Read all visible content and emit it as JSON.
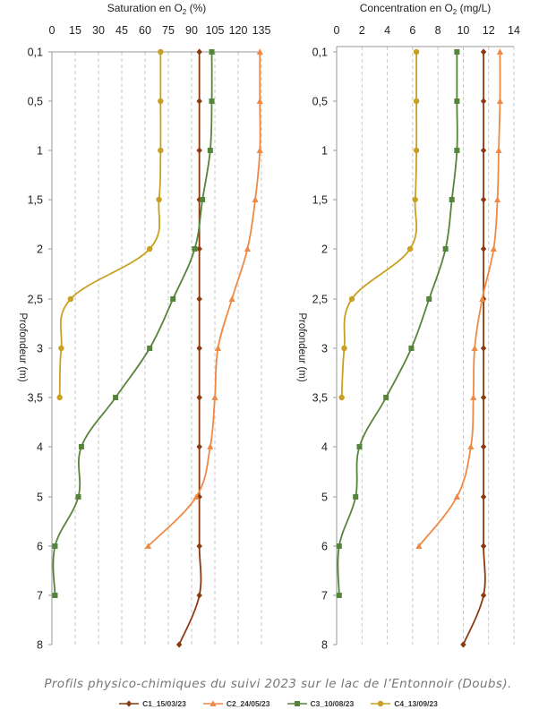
{
  "caption": "Profils physico-chimiques du suivi 2023 sur le lac de l’Entonnoir (Doubs).",
  "colors": {
    "C1": "#8B3A0F",
    "C2": "#EE8A45",
    "C3": "#55853A",
    "C4": "#C9A021"
  },
  "legend": [
    {
      "key": "C1",
      "label": "C1_15/03/23",
      "marker": "diamond"
    },
    {
      "key": "C2",
      "label": "C2_24/05/23",
      "marker": "triangle"
    },
    {
      "key": "C3",
      "label": "C3_10/08/23",
      "marker": "square"
    },
    {
      "key": "C4",
      "label": "C4_13/09/23",
      "marker": "circle"
    }
  ],
  "chart_data": [
    {
      "type": "line",
      "title_parts": [
        "Saturation en O",
        "2",
        " (%)"
      ],
      "ylabel": "Profondeur (m)",
      "xlim": [
        0,
        135
      ],
      "x_ticks": [
        "0",
        "15",
        "30",
        "45",
        "60",
        "75",
        "90",
        "105",
        "120",
        "135"
      ],
      "y_ticks": [
        "0,1",
        "0,5",
        "1",
        "1,5",
        "2",
        "2,5",
        "3",
        "3,5",
        "4",
        "5",
        "6",
        "7",
        "8"
      ],
      "grid": "vertical dashed",
      "series": [
        {
          "key": "C1",
          "name": "C1_15/03/23",
          "points": [
            [
              95,
              "0,1"
            ],
            [
              95,
              "0,5"
            ],
            [
              95,
              "1"
            ],
            [
              95,
              "1,5"
            ],
            [
              95,
              "2"
            ],
            [
              95,
              "2,5"
            ],
            [
              95,
              "3"
            ],
            [
              95,
              "3,5"
            ],
            [
              95,
              "4"
            ],
            [
              95,
              "5"
            ],
            [
              95,
              "6"
            ],
            [
              95,
              "7"
            ],
            [
              82,
              "8"
            ]
          ]
        },
        {
          "key": "C2",
          "name": "C2_24/05/23",
          "points": [
            [
              134,
              "0,1"
            ],
            [
              134,
              "0,5"
            ],
            [
              134,
              "1"
            ],
            [
              131,
              "1,5"
            ],
            [
              126,
              "2"
            ],
            [
              116,
              "2,5"
            ],
            [
              107,
              "3"
            ],
            [
              105,
              "3,5"
            ],
            [
              102,
              "4"
            ],
            [
              93,
              "5"
            ],
            [
              62,
              "6"
            ]
          ]
        },
        {
          "key": "C3",
          "name": "C3_10/08/23",
          "points": [
            [
              103,
              "0,1"
            ],
            [
              103,
              "0,5"
            ],
            [
              102,
              "1"
            ],
            [
              97,
              "1,5"
            ],
            [
              92,
              "2"
            ],
            [
              78,
              "2,5"
            ],
            [
              63,
              "3"
            ],
            [
              41,
              "3,5"
            ],
            [
              19,
              "4"
            ],
            [
              17,
              "5"
            ],
            [
              2,
              "6"
            ],
            [
              2,
              "7"
            ]
          ]
        },
        {
          "key": "C4",
          "name": "C4_13/09/23",
          "points": [
            [
              70,
              "0,1"
            ],
            [
              70,
              "0,5"
            ],
            [
              70,
              "1"
            ],
            [
              69,
              "1,5"
            ],
            [
              63,
              "2"
            ],
            [
              12,
              "2,5"
            ],
            [
              6,
              "3"
            ],
            [
              5,
              "3,5"
            ]
          ]
        }
      ]
    },
    {
      "type": "line",
      "title_parts": [
        "Concentration en O",
        "2",
        " (mg/L)"
      ],
      "ylabel": "Profondeur (m)",
      "xlim": [
        0,
        14
      ],
      "x_ticks": [
        "0",
        "2",
        "4",
        "6",
        "8",
        "10",
        "12",
        "14"
      ],
      "y_ticks": [
        "0,1",
        "0,5",
        "1",
        "1,5",
        "2",
        "2,5",
        "3",
        "3,5",
        "4",
        "5",
        "6",
        "7",
        "8"
      ],
      "grid": "vertical dashed",
      "series": [
        {
          "key": "C1",
          "name": "C1_15/03/23",
          "points": [
            [
              11.6,
              "0,1"
            ],
            [
              11.6,
              "0,5"
            ],
            [
              11.6,
              "1"
            ],
            [
              11.6,
              "1,5"
            ],
            [
              11.6,
              "2"
            ],
            [
              11.6,
              "2,5"
            ],
            [
              11.6,
              "3"
            ],
            [
              11.6,
              "3,5"
            ],
            [
              11.6,
              "4"
            ],
            [
              11.6,
              "5"
            ],
            [
              11.6,
              "6"
            ],
            [
              11.6,
              "7"
            ],
            [
              10.0,
              "8"
            ]
          ]
        },
        {
          "key": "C2",
          "name": "C2_24/05/23",
          "points": [
            [
              12.9,
              "0,1"
            ],
            [
              12.9,
              "0,5"
            ],
            [
              12.8,
              "1"
            ],
            [
              12.7,
              "1,5"
            ],
            [
              12.4,
              "2"
            ],
            [
              11.5,
              "2,5"
            ],
            [
              10.9,
              "3"
            ],
            [
              10.8,
              "3,5"
            ],
            [
              10.6,
              "4"
            ],
            [
              9.5,
              "5"
            ],
            [
              6.5,
              "6"
            ]
          ]
        },
        {
          "key": "C3",
          "name": "C3_10/08/23",
          "points": [
            [
              9.5,
              "0,1"
            ],
            [
              9.5,
              "0,5"
            ],
            [
              9.5,
              "1"
            ],
            [
              9.1,
              "1,5"
            ],
            [
              8.6,
              "2"
            ],
            [
              7.3,
              "2,5"
            ],
            [
              5.9,
              "3"
            ],
            [
              3.9,
              "3,5"
            ],
            [
              1.8,
              "4"
            ],
            [
              1.5,
              "5"
            ],
            [
              0.2,
              "6"
            ],
            [
              0.2,
              "7"
            ]
          ]
        },
        {
          "key": "C4",
          "name": "C4_13/09/23",
          "points": [
            [
              6.3,
              "0,1"
            ],
            [
              6.3,
              "0,5"
            ],
            [
              6.3,
              "1"
            ],
            [
              6.2,
              "1,5"
            ],
            [
              5.8,
              "2"
            ],
            [
              1.2,
              "2,5"
            ],
            [
              0.6,
              "3"
            ],
            [
              0.4,
              "3,5"
            ]
          ]
        }
      ]
    }
  ]
}
